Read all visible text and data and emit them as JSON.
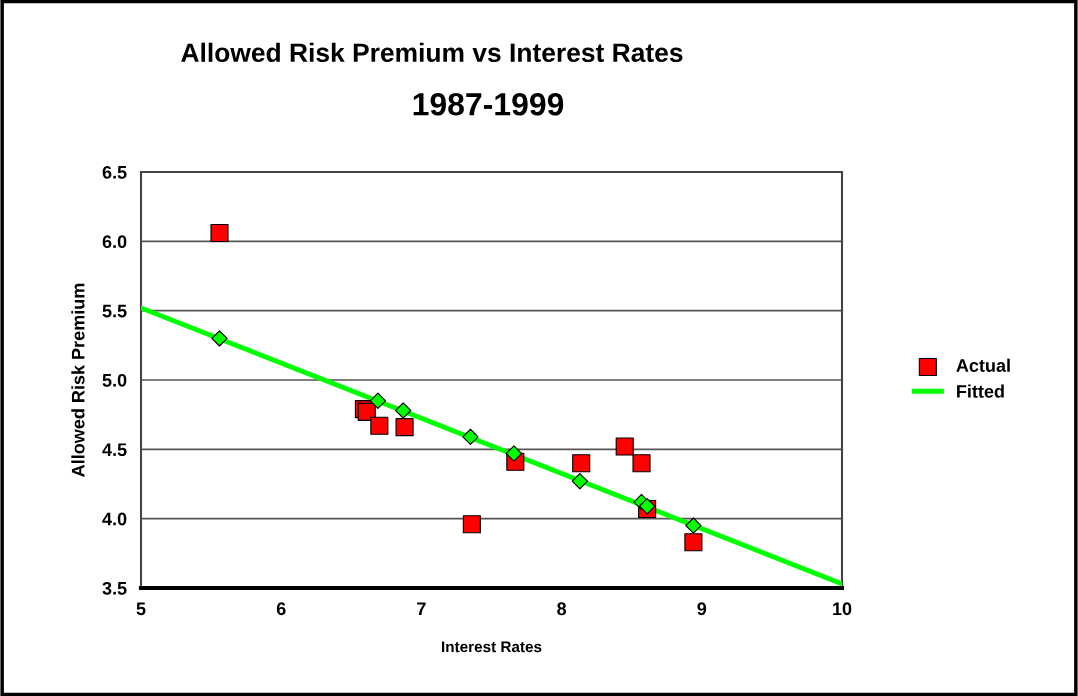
{
  "chart_data": {
    "type": "scatter",
    "title": "Allowed Risk Premium vs Interest Rates",
    "subtitle": "1987-1999",
    "xlabel": "Interest Rates",
    "ylabel": "Allowed Risk Premium",
    "xlim": [
      5,
      10
    ],
    "xticks": [
      5,
      6,
      7,
      8,
      9,
      10
    ],
    "ylim": [
      3.5,
      6.5
    ],
    "yticks": [
      {
        "value": 3.5,
        "label": "3.5"
      },
      {
        "value": 4.0,
        "label": "4.0"
      },
      {
        "value": 4.5,
        "label": "4.5"
      },
      {
        "value": 5.0,
        "label": "5.0"
      },
      {
        "value": 5.5,
        "label": "5.5"
      },
      {
        "value": 6.0,
        "label": "6.0"
      },
      {
        "value": 6.5,
        "label": "6.5"
      }
    ],
    "grid": "y",
    "legend": "right",
    "series": [
      {
        "name": "Actual",
        "marker": "square",
        "color": "#ff0000",
        "x": [
          5.56,
          6.59,
          6.61,
          6.7,
          6.88,
          7.36,
          7.67,
          8.14,
          8.45,
          8.57,
          8.61,
          8.94
        ],
        "values": [
          6.06,
          4.79,
          4.77,
          4.67,
          4.66,
          3.96,
          4.41,
          4.4,
          4.52,
          4.4,
          4.07,
          3.83
        ]
      },
      {
        "name": "Fitted",
        "type": "line",
        "marker": "none",
        "color": "#00ff00",
        "x": [
          5,
          10
        ],
        "values": [
          5.52,
          3.53
        ]
      },
      {
        "marker": "diamond",
        "color": "#00ff00",
        "x": [
          5.56,
          6.69,
          6.87,
          7.35,
          7.66,
          8.13,
          8.57,
          8.61,
          8.94
        ],
        "values": [
          5.3,
          4.85,
          4.78,
          4.59,
          4.47,
          4.27,
          4.12,
          4.09,
          3.95
        ]
      }
    ]
  }
}
